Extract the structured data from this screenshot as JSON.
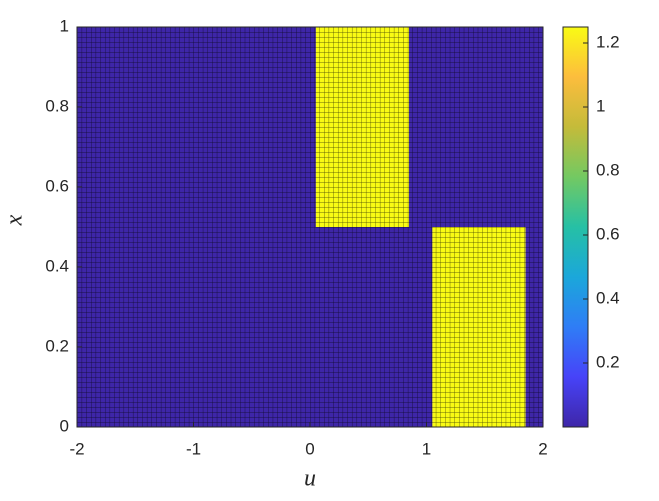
{
  "chart_data": {
    "type": "heatmap",
    "xlabel": "u",
    "ylabel": "x",
    "xlim": [
      -2,
      2
    ],
    "xticks": [
      -2,
      -1,
      0,
      1,
      2
    ],
    "ylim": [
      0,
      1
    ],
    "yticks": [
      0,
      {
        "value": 0.2,
        "label": "0.2"
      },
      {
        "value": 0.4,
        "label": "0.4"
      },
      {
        "value": 0.6,
        "label": "0.6"
      },
      {
        "value": 0.8,
        "label": "0.8"
      },
      1
    ],
    "background_value": 0,
    "regions": [
      {
        "x": [
          0.05,
          0.85
        ],
        "y": [
          0.5,
          1
        ],
        "value": 1.25
      },
      {
        "x": [
          1.05,
          1.85
        ],
        "y": [
          0,
          0.5
        ],
        "value": 1.25
      }
    ],
    "clim": [
      0,
      1.25
    ],
    "cticks": [
      {
        "value": 0.2,
        "label": "0.2"
      },
      {
        "value": 0.4,
        "label": "0.4"
      },
      {
        "value": 0.6,
        "label": "0.6"
      },
      {
        "value": 0.8,
        "label": "0.8"
      },
      1,
      {
        "value": 1.2,
        "label": "1.2"
      }
    ],
    "colormap": [
      "#3e26a8",
      "#4743f8",
      "#2f7df6",
      "#1ba7da",
      "#26c0a5",
      "#73c962",
      "#c4bb3a",
      "#fcbd3d",
      "#f9fb14"
    ]
  }
}
